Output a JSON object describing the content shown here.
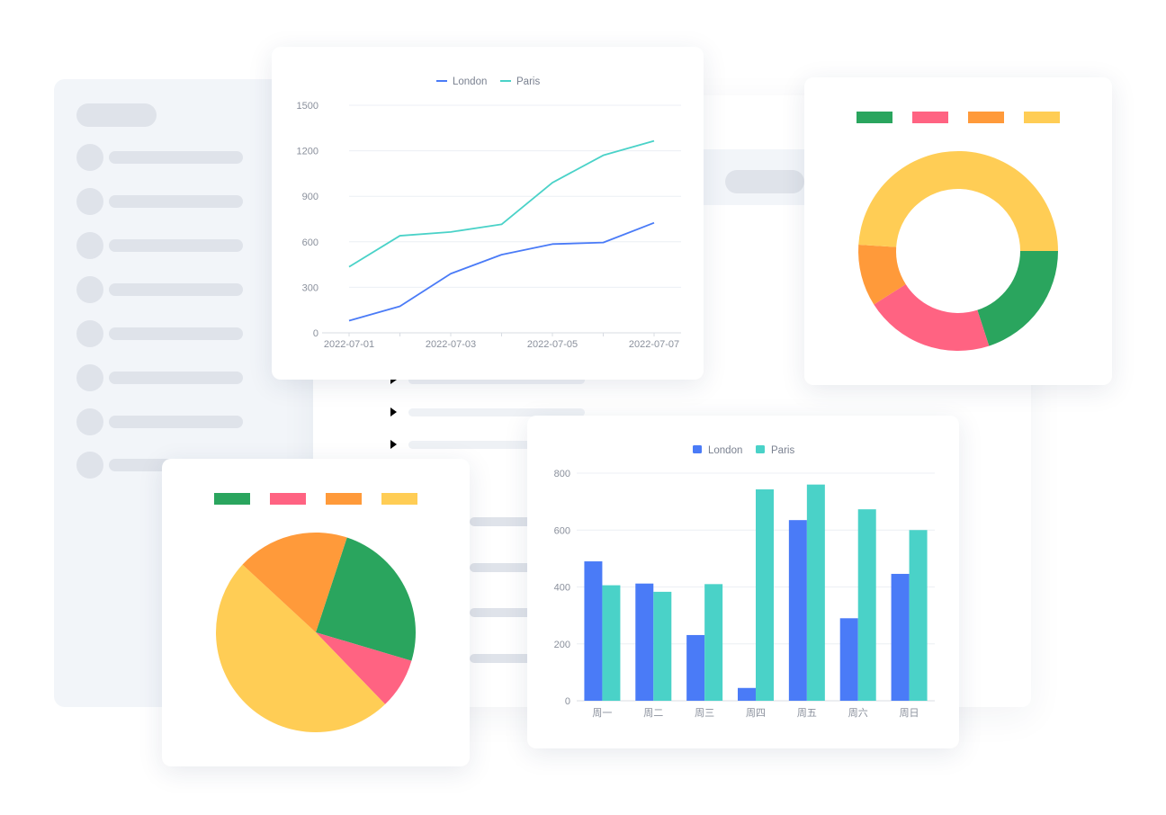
{
  "colors": {
    "london": "#4a7bf7",
    "paris": "#4ad2c8",
    "green": "#2aa55e",
    "pink": "#ff6382",
    "orange": "#ff9a3a",
    "yellow": "#ffcd55"
  },
  "chart_data": [
    {
      "id": "line",
      "type": "line",
      "legend": [
        "London",
        "Paris"
      ],
      "legend_position": "top-center",
      "x": [
        "2022-07-01",
        "2022-07-02",
        "2022-07-03",
        "2022-07-04",
        "2022-07-05",
        "2022-07-06",
        "2022-07-07"
      ],
      "x_tick_labels": [
        "2022-07-01",
        "2022-07-03",
        "2022-07-05",
        "2022-07-07"
      ],
      "series": [
        {
          "name": "London",
          "values": [
            80,
            175,
            390,
            515,
            585,
            595,
            725
          ]
        },
        {
          "name": "Paris",
          "values": [
            435,
            640,
            665,
            715,
            990,
            1170,
            1265
          ]
        }
      ],
      "y_ticks": [
        "0",
        "300",
        "600",
        "900",
        "1200",
        "1500"
      ],
      "ylim": [
        0,
        1500
      ],
      "grid": true
    },
    {
      "id": "donut",
      "type": "pie",
      "variant": "donut",
      "legend_colors": [
        "green",
        "pink",
        "orange",
        "yellow"
      ],
      "legend_position": "top-center",
      "values": [
        20,
        21,
        10,
        49
      ],
      "colors": [
        "green",
        "pink",
        "orange",
        "yellow"
      ]
    },
    {
      "id": "pie",
      "type": "pie",
      "legend_colors": [
        "green",
        "pink",
        "orange",
        "yellow"
      ],
      "legend_position": "top-center",
      "values": [
        27,
        9,
        54,
        20
      ],
      "colors": [
        "green",
        "pink",
        "yellow",
        "orange"
      ]
    },
    {
      "id": "bar",
      "type": "bar",
      "legend": [
        "London",
        "Paris"
      ],
      "legend_position": "top-center",
      "categories": [
        "周一",
        "周二",
        "周三",
        "周四",
        "周五",
        "周六",
        "周日"
      ],
      "series": [
        {
          "name": "London",
          "values": [
            490,
            412,
            231,
            45,
            635,
            290,
            446
          ]
        },
        {
          "name": "Paris",
          "values": [
            406,
            383,
            410,
            743,
            760,
            673,
            600
          ]
        }
      ],
      "y_ticks": [
        "0",
        "200",
        "400",
        "600",
        "800"
      ],
      "ylim": [
        0,
        800
      ],
      "grid": true
    }
  ]
}
